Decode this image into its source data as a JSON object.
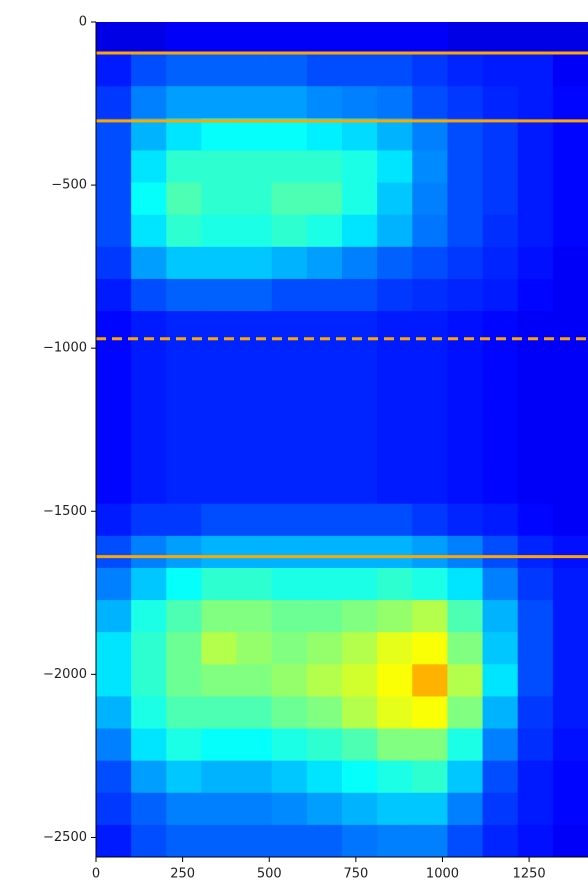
{
  "chart_data": {
    "type": "heatmap",
    "xlim": [
      0,
      1420
    ],
    "ylim": [
      -2560,
      0
    ],
    "xticks": [
      0,
      250,
      500,
      750,
      1000,
      1250
    ],
    "yticks": [
      0,
      {
        "value": -500,
        "label": "−500"
      },
      {
        "value": -1000,
        "label": "−1000"
      },
      {
        "value": -1500,
        "label": "−1500"
      },
      {
        "value": -2000,
        "label": "−2000"
      },
      {
        "value": -2500,
        "label": "−2500"
      }
    ],
    "colormap": "jet",
    "z": [
      [
        0.1,
        0.1,
        0.12,
        0.12,
        0.12,
        0.12,
        0.12,
        0.12,
        0.12,
        0.12,
        0.1,
        0.1,
        0.1,
        0.1
      ],
      [
        0.15,
        0.2,
        0.22,
        0.22,
        0.22,
        0.22,
        0.2,
        0.2,
        0.2,
        0.18,
        0.16,
        0.15,
        0.15,
        0.12
      ],
      [
        0.18,
        0.25,
        0.28,
        0.28,
        0.28,
        0.28,
        0.26,
        0.25,
        0.24,
        0.2,
        0.18,
        0.16,
        0.15,
        0.13
      ],
      [
        0.2,
        0.3,
        0.35,
        0.38,
        0.38,
        0.38,
        0.36,
        0.34,
        0.3,
        0.25,
        0.2,
        0.18,
        0.15,
        0.13
      ],
      [
        0.2,
        0.35,
        0.42,
        0.42,
        0.42,
        0.42,
        0.42,
        0.4,
        0.35,
        0.26,
        0.2,
        0.18,
        0.15,
        0.13
      ],
      [
        0.2,
        0.38,
        0.45,
        0.42,
        0.42,
        0.45,
        0.45,
        0.4,
        0.32,
        0.25,
        0.2,
        0.18,
        0.15,
        0.13
      ],
      [
        0.2,
        0.35,
        0.42,
        0.4,
        0.4,
        0.42,
        0.4,
        0.35,
        0.3,
        0.24,
        0.2,
        0.17,
        0.15,
        0.13
      ],
      [
        0.18,
        0.28,
        0.32,
        0.32,
        0.32,
        0.3,
        0.28,
        0.25,
        0.22,
        0.2,
        0.18,
        0.16,
        0.14,
        0.12
      ],
      [
        0.15,
        0.2,
        0.22,
        0.22,
        0.22,
        0.2,
        0.2,
        0.2,
        0.18,
        0.17,
        0.16,
        0.15,
        0.13,
        0.12
      ],
      [
        0.13,
        0.15,
        0.16,
        0.16,
        0.16,
        0.16,
        0.16,
        0.16,
        0.15,
        0.15,
        0.14,
        0.13,
        0.12,
        0.12
      ],
      [
        0.13,
        0.15,
        0.16,
        0.16,
        0.16,
        0.16,
        0.16,
        0.16,
        0.15,
        0.15,
        0.14,
        0.13,
        0.12,
        0.12
      ],
      [
        0.13,
        0.15,
        0.16,
        0.16,
        0.16,
        0.16,
        0.16,
        0.16,
        0.15,
        0.15,
        0.14,
        0.13,
        0.12,
        0.12
      ],
      [
        0.13,
        0.15,
        0.16,
        0.16,
        0.16,
        0.16,
        0.16,
        0.16,
        0.15,
        0.15,
        0.14,
        0.13,
        0.12,
        0.12
      ],
      [
        0.13,
        0.15,
        0.16,
        0.16,
        0.16,
        0.16,
        0.16,
        0.16,
        0.15,
        0.15,
        0.14,
        0.13,
        0.12,
        0.12
      ],
      [
        0.13,
        0.15,
        0.16,
        0.16,
        0.16,
        0.16,
        0.16,
        0.16,
        0.15,
        0.15,
        0.14,
        0.13,
        0.12,
        0.12
      ],
      [
        0.15,
        0.18,
        0.18,
        0.2,
        0.2,
        0.2,
        0.2,
        0.2,
        0.2,
        0.18,
        0.16,
        0.15,
        0.13,
        0.12
      ],
      [
        0.2,
        0.25,
        0.28,
        0.3,
        0.3,
        0.3,
        0.3,
        0.3,
        0.3,
        0.28,
        0.25,
        0.2,
        0.16,
        0.14
      ],
      [
        0.25,
        0.32,
        0.38,
        0.42,
        0.42,
        0.4,
        0.4,
        0.4,
        0.42,
        0.4,
        0.35,
        0.25,
        0.18,
        0.15
      ],
      [
        0.3,
        0.4,
        0.45,
        0.5,
        0.5,
        0.48,
        0.48,
        0.5,
        0.52,
        0.55,
        0.45,
        0.3,
        0.2,
        0.15
      ],
      [
        0.35,
        0.42,
        0.48,
        0.55,
        0.52,
        0.5,
        0.52,
        0.55,
        0.6,
        0.62,
        0.5,
        0.32,
        0.2,
        0.15
      ],
      [
        0.35,
        0.42,
        0.48,
        0.5,
        0.5,
        0.52,
        0.55,
        0.58,
        0.62,
        0.7,
        0.55,
        0.35,
        0.2,
        0.15
      ],
      [
        0.3,
        0.4,
        0.45,
        0.45,
        0.45,
        0.48,
        0.5,
        0.55,
        0.6,
        0.62,
        0.5,
        0.3,
        0.18,
        0.15
      ],
      [
        0.25,
        0.35,
        0.4,
        0.38,
        0.38,
        0.4,
        0.42,
        0.45,
        0.5,
        0.5,
        0.4,
        0.25,
        0.17,
        0.14
      ],
      [
        0.2,
        0.28,
        0.32,
        0.3,
        0.3,
        0.32,
        0.35,
        0.38,
        0.4,
        0.42,
        0.32,
        0.2,
        0.15,
        0.13
      ],
      [
        0.18,
        0.22,
        0.25,
        0.25,
        0.25,
        0.26,
        0.28,
        0.3,
        0.32,
        0.32,
        0.25,
        0.18,
        0.15,
        0.13
      ],
      [
        0.15,
        0.2,
        0.22,
        0.22,
        0.22,
        0.22,
        0.22,
        0.24,
        0.25,
        0.25,
        0.2,
        0.16,
        0.14,
        0.12
      ]
    ],
    "hlines": [
      {
        "value": -95,
        "style": "solid"
      },
      {
        "value": -303,
        "style": "solid"
      },
      {
        "value": -971,
        "style": "dashed"
      },
      {
        "value": -1639,
        "style": "solid"
      }
    ],
    "hline_color": "#ffa500"
  }
}
